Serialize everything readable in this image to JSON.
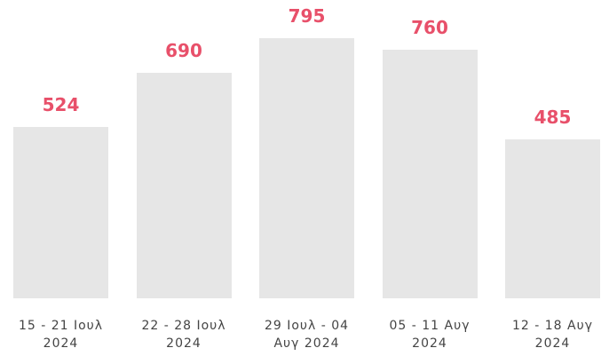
{
  "chart_data": {
    "type": "bar",
    "categories": [
      "15 - 21 Ιουλ 2024",
      "22 - 28 Ιουλ 2024",
      "29 Ιουλ - 04 Αυγ 2024",
      "05 - 11 Αυγ 2024",
      "12 - 18 Αυγ 2024"
    ],
    "values": [
      524,
      690,
      795,
      760,
      485
    ],
    "color": "#e6e6e6",
    "label_color": "#e8506a"
  }
}
